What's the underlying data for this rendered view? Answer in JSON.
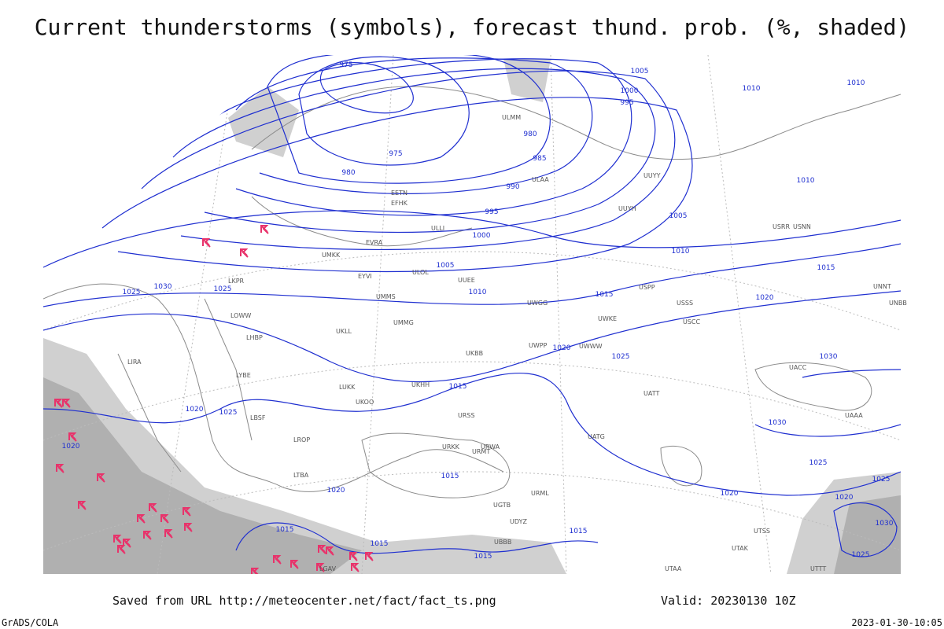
{
  "title": "Current thunderstorms (symbols), forecast thund. prob. (%, shaded)",
  "footer": {
    "saved": "Saved from URL http://meteocenter.net/fact/fact_ts.png",
    "valid": "Valid: 20230130 10Z",
    "credit": "GrADS/COLA",
    "timestamp": "2023-01-30-10:05"
  },
  "isobar_labels": [
    "975",
    "975",
    "980",
    "980",
    "985",
    "990",
    "995",
    "1000",
    "1005",
    "1010",
    "1015",
    "1020",
    "1025",
    "1030",
    "1030",
    "1015",
    "1015",
    "1020",
    "1015",
    "1015",
    "1015",
    "1015",
    "1020",
    "1025",
    "1025",
    "1030",
    "1025",
    "1020",
    "1020",
    "1020",
    "1025",
    "1025",
    "1030",
    "1025",
    "1005",
    "1000",
    "995",
    "1005",
    "1010",
    "1015",
    "1010",
    "1010",
    "1010",
    "1020"
  ],
  "stations": [
    "ULLI",
    "UUEE",
    "UMMS",
    "UKBB",
    "UKHH",
    "URSS",
    "URKK",
    "URWA",
    "UATG",
    "UATT",
    "UACC",
    "UAAA",
    "USSS",
    "USCC",
    "USPP",
    "UWWW",
    "UWKE",
    "UWPP",
    "UWGG",
    "ULOL",
    "EFHK",
    "EETN",
    "EVRA",
    "UMKK",
    "EYVI",
    "UMMG",
    "UKLL",
    "LKPR",
    "LOWW",
    "LHBP",
    "LYBE",
    "LBSF",
    "LROP",
    "LUKK",
    "UKOO",
    "URMT",
    "URML",
    "UGTB",
    "UDYZ",
    "UBBB",
    "LTBA",
    "LGAV",
    "LIRA",
    "UUYH",
    "ULMM",
    "ULAA",
    "UUYY",
    "USRR",
    "USNN",
    "UNNT",
    "UNBB",
    "UTAA",
    "UTTT",
    "UTSS",
    "UTAK"
  ]
}
